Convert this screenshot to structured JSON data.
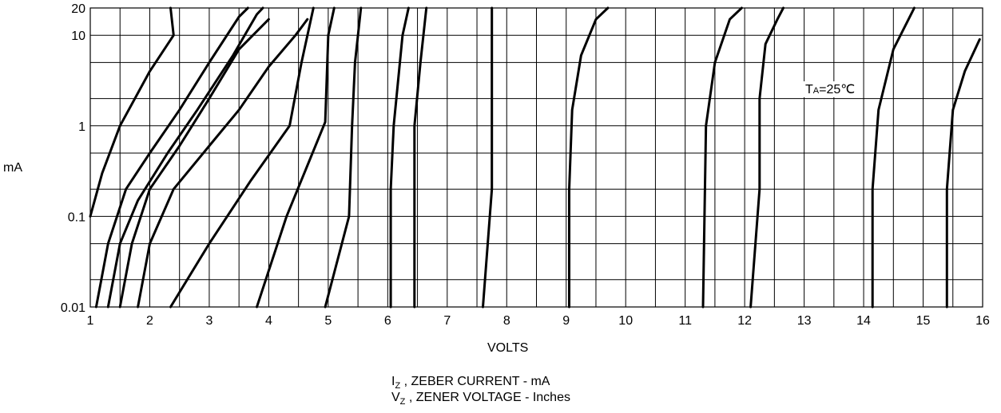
{
  "chart_data": {
    "type": "line",
    "title": "",
    "x_axis": {
      "label": "VOLTS",
      "min": 1,
      "max": 16,
      "ticks": [
        1,
        2,
        3,
        4,
        5,
        6,
        7,
        8,
        9,
        10,
        11,
        12,
        13,
        14,
        15,
        16
      ],
      "tick_labels": [
        "1",
        "2",
        "3",
        "4",
        "5",
        "6",
        "7",
        "8",
        "9",
        "10",
        "11",
        "12",
        "13",
        "14",
        "15",
        "16"
      ]
    },
    "y_axis": {
      "label": "mA",
      "scale": "log",
      "min": 0.01,
      "max": 20,
      "ticks": [
        0.01,
        0.1,
        1,
        10,
        20
      ],
      "tick_labels": [
        "0.01",
        "0.1",
        "1",
        "10",
        "20"
      ]
    },
    "grid": true,
    "annotation": {
      "main": "T",
      "sub": "A",
      "rest": "=25℃",
      "x": 13.05,
      "y": 2.6
    },
    "caption": {
      "line1": {
        "sym": "I",
        "sub": "Z",
        "text": " , ZEBER CURRENT - mA"
      },
      "line2": {
        "sym": "V",
        "sub": "Z",
        "text": " , ZENER VOLTAGE  -  Inches"
      }
    },
    "series": [
      {
        "points": [
          [
            1.0,
            0.1
          ],
          [
            1.2,
            0.3
          ],
          [
            1.5,
            1
          ],
          [
            2.0,
            4
          ],
          [
            2.4,
            10
          ],
          [
            2.35,
            20
          ]
        ]
      },
      {
        "points": [
          [
            1.1,
            0.01
          ],
          [
            1.3,
            0.05
          ],
          [
            1.6,
            0.2
          ],
          [
            2.0,
            0.5
          ],
          [
            2.5,
            1.5
          ],
          [
            3.0,
            5
          ],
          [
            3.5,
            16
          ],
          [
            3.65,
            20
          ]
        ]
      },
      {
        "points": [
          [
            1.3,
            0.01
          ],
          [
            1.5,
            0.05
          ],
          [
            1.8,
            0.15
          ],
          [
            2.3,
            0.5
          ],
          [
            2.8,
            1.5
          ],
          [
            3.4,
            6
          ],
          [
            3.8,
            17
          ],
          [
            3.9,
            20
          ]
        ]
      },
      {
        "points": [
          [
            1.5,
            0.01
          ],
          [
            1.7,
            0.05
          ],
          [
            2.0,
            0.2
          ],
          [
            2.5,
            0.6
          ],
          [
            3.0,
            2
          ],
          [
            3.5,
            7
          ],
          [
            4.0,
            15
          ]
        ]
      },
      {
        "points": [
          [
            1.8,
            0.01
          ],
          [
            2.0,
            0.05
          ],
          [
            2.4,
            0.2
          ],
          [
            3.0,
            0.6
          ],
          [
            3.5,
            1.5
          ],
          [
            4.0,
            4.5
          ],
          [
            4.45,
            10
          ],
          [
            4.65,
            15
          ]
        ]
      },
      {
        "points": [
          [
            2.35,
            0.01
          ],
          [
            3.0,
            0.05
          ],
          [
            3.7,
            0.25
          ],
          [
            4.35,
            1
          ],
          [
            4.55,
            5
          ],
          [
            4.75,
            20
          ]
        ]
      },
      {
        "points": [
          [
            3.8,
            0.01
          ],
          [
            4.3,
            0.1
          ],
          [
            4.95,
            1.1
          ],
          [
            5.0,
            10
          ],
          [
            5.1,
            20
          ]
        ]
      },
      {
        "points": [
          [
            4.95,
            0.01
          ],
          [
            5.35,
            0.1
          ],
          [
            5.4,
            1
          ],
          [
            5.45,
            5
          ],
          [
            5.55,
            20
          ]
        ]
      },
      {
        "points": [
          [
            6.05,
            0.01
          ],
          [
            6.05,
            0.2
          ],
          [
            6.1,
            1
          ],
          [
            6.25,
            10
          ],
          [
            6.35,
            20
          ]
        ]
      },
      {
        "points": [
          [
            6.45,
            0.01
          ],
          [
            6.45,
            0.2
          ],
          [
            6.45,
            1
          ],
          [
            6.55,
            5
          ],
          [
            6.65,
            20
          ]
        ]
      },
      {
        "points": [
          [
            7.6,
            0.01
          ],
          [
            7.75,
            0.2
          ],
          [
            7.75,
            2
          ],
          [
            7.75,
            20
          ]
        ]
      },
      {
        "points": [
          [
            9.05,
            0.01
          ],
          [
            9.05,
            0.2
          ],
          [
            9.1,
            1.5
          ],
          [
            9.25,
            6
          ],
          [
            9.5,
            15
          ],
          [
            9.7,
            20
          ]
        ]
      },
      {
        "points": [
          [
            11.3,
            0.01
          ],
          [
            11.35,
            1
          ],
          [
            11.5,
            5
          ],
          [
            11.75,
            15
          ],
          [
            11.95,
            20
          ]
        ]
      },
      {
        "points": [
          [
            12.1,
            0.01
          ],
          [
            12.25,
            0.2
          ],
          [
            12.25,
            2
          ],
          [
            12.35,
            8
          ],
          [
            12.55,
            15
          ],
          [
            12.65,
            20
          ]
        ]
      },
      {
        "points": [
          [
            14.15,
            0.01
          ],
          [
            14.15,
            0.2
          ],
          [
            14.25,
            1.5
          ],
          [
            14.5,
            7
          ],
          [
            14.85,
            20
          ]
        ]
      },
      {
        "points": [
          [
            15.4,
            0.01
          ],
          [
            15.4,
            0.2
          ],
          [
            15.5,
            1.5
          ],
          [
            15.7,
            4
          ],
          [
            15.95,
            9
          ]
        ]
      }
    ]
  }
}
